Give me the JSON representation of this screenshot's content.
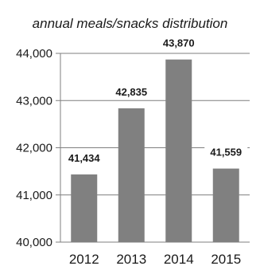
{
  "chart_data": {
    "type": "bar",
    "title": "annual meals/snacks distribution",
    "xlabel": "",
    "ylabel": "",
    "categories": [
      "2012",
      "2013",
      "2014",
      "2015"
    ],
    "values": [
      41434,
      42835,
      43870,
      41559
    ],
    "data_labels": [
      "41,434",
      "42,835",
      "43,870",
      "41,559"
    ],
    "ylim": [
      40000,
      44000
    ],
    "y_ticks": [
      40000,
      41000,
      42000,
      43000,
      44000
    ],
    "y_tick_labels": [
      "40,000",
      "41,000",
      "42,000",
      "43,000",
      "44,000"
    ],
    "grid": true,
    "legend": "none",
    "bar_color": "#808080"
  }
}
